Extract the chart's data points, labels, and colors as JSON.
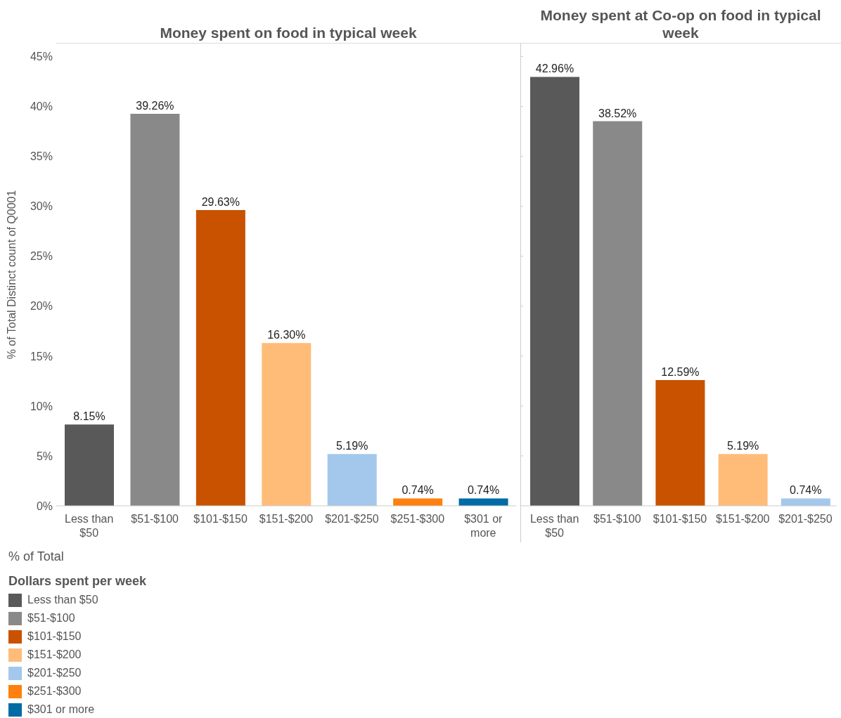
{
  "chart_data": [
    {
      "type": "bar",
      "title": "Money spent on food in typical week",
      "ylabel": "% of Total Distinct count of Q0001",
      "stacked": true,
      "categories": [
        "Less than $50",
        "$51-$100",
        "$101-$150",
        "$151-$200",
        "$201-$250",
        "$251-$300",
        "$301 or more"
      ],
      "series": [
        {
          "name": "Less than $50",
          "color": "#595959",
          "values": [
            8.15,
            null,
            null,
            null,
            null,
            null,
            null
          ],
          "value_labels": [
            "8.15%",
            null,
            null,
            null,
            null,
            null,
            null
          ]
        },
        {
          "name": "$51-$100",
          "color": "#898989",
          "values": [
            null,
            39.26,
            null,
            null,
            null,
            null,
            null
          ],
          "value_labels": [
            null,
            "39.26%",
            null,
            null,
            null,
            null,
            null
          ]
        },
        {
          "name": "$101-$150",
          "color": "#c85200",
          "values": [
            null,
            null,
            29.63,
            null,
            null,
            null,
            null
          ],
          "value_labels": [
            null,
            null,
            "29.63%",
            null,
            null,
            null,
            null
          ]
        },
        {
          "name": "$151-$200",
          "color": "#ffbc79",
          "values": [
            null,
            null,
            null,
            16.3,
            null,
            null,
            null
          ],
          "value_labels": [
            null,
            null,
            null,
            "16.30%",
            null,
            null,
            null
          ]
        },
        {
          "name": "$201-$250",
          "color": "#a3c8ec",
          "values": [
            null,
            null,
            null,
            null,
            5.19,
            null,
            null
          ],
          "value_labels": [
            null,
            null,
            null,
            null,
            "5.19%",
            null,
            null
          ]
        },
        {
          "name": "$251-$300",
          "color": "#ff800e",
          "values": [
            null,
            null,
            null,
            null,
            null,
            0.74,
            null
          ],
          "value_labels": [
            null,
            null,
            null,
            null,
            null,
            "0.74%",
            null
          ]
        },
        {
          "name": "$301 or more",
          "color": "#006ba4",
          "values": [
            null,
            null,
            null,
            null,
            null,
            null,
            0.74
          ],
          "value_labels": [
            null,
            null,
            null,
            null,
            null,
            null,
            "0.74%"
          ]
        }
      ],
      "ylim": [
        0,
        46.3
      ],
      "yticks": [
        {
          "value": 0,
          "label": "0%"
        },
        {
          "value": 5,
          "label": "5%"
        },
        {
          "value": 10,
          "label": "10%"
        },
        {
          "value": 15,
          "label": "15%"
        },
        {
          "value": 20,
          "label": "20%"
        },
        {
          "value": 25,
          "label": "25%"
        },
        {
          "value": 30,
          "label": "30%"
        },
        {
          "value": 35,
          "label": "35%"
        },
        {
          "value": 40,
          "label": "40%"
        },
        {
          "value": 45,
          "label": "45%"
        }
      ],
      "legend": "bottom",
      "legend_title": "Dollars spent per week",
      "annotations": [
        "% of Total"
      ]
    },
    {
      "type": "bar",
      "title": "Money spent at Co-op on food in typical week",
      "stacked": true,
      "categories": [
        "Less than $50",
        "$51-$100",
        "$101-$150",
        "$151-$200",
        "$201-$250"
      ],
      "series": [
        {
          "color": "#595959",
          "values": [
            42.96,
            null,
            null,
            null,
            null
          ],
          "value_labels": [
            "42.96%",
            null,
            null,
            null,
            null
          ]
        },
        {
          "color": "#898989",
          "values": [
            null,
            38.52,
            null,
            null,
            null
          ],
          "value_labels": [
            null,
            "38.52%",
            null,
            null,
            null
          ]
        },
        {
          "color": "#c85200",
          "values": [
            null,
            null,
            12.59,
            null,
            null
          ],
          "value_labels": [
            null,
            null,
            "12.59%",
            null,
            null
          ]
        },
        {
          "color": "#ffbc79",
          "values": [
            null,
            null,
            null,
            5.19,
            null
          ],
          "value_labels": [
            null,
            null,
            null,
            "5.19%",
            null
          ]
        },
        {
          "color": "#a3c8ec",
          "values": [
            null,
            null,
            null,
            null,
            0.74
          ],
          "value_labels": [
            null,
            null,
            null,
            null,
            "0.74%"
          ]
        }
      ],
      "ylim": [
        0,
        46.3
      ],
      "yticks": [
        {
          "value": 0,
          "label": null
        },
        {
          "value": 5,
          "label": null
        },
        {
          "value": 10,
          "label": null
        },
        {
          "value": 15,
          "label": null
        },
        {
          "value": 20,
          "label": null
        },
        {
          "value": 25,
          "label": null
        },
        {
          "value": 30,
          "label": null
        },
        {
          "value": 35,
          "label": null
        },
        {
          "value": 40,
          "label": null
        },
        {
          "value": 45,
          "label": null
        }
      ],
      "tick_labels": "x"
    }
  ]
}
